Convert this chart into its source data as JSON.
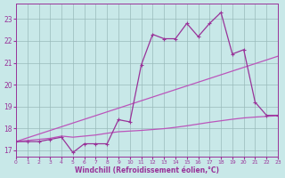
{
  "xlabel": "Windchill (Refroidissement éolien,°C)",
  "bg_color": "#c8e8e8",
  "grid_color": "#99bbbb",
  "line_color": "#993399",
  "line_light_color": "#bb55bb",
  "ylim": [
    16.7,
    23.7
  ],
  "xlim": [
    0,
    23
  ],
  "yticks": [
    17,
    18,
    19,
    20,
    21,
    22,
    23
  ],
  "xticks": [
    0,
    1,
    2,
    3,
    4,
    5,
    6,
    7,
    8,
    9,
    10,
    11,
    12,
    13,
    14,
    15,
    16,
    17,
    18,
    19,
    20,
    21,
    22,
    23
  ],
  "curve1_y": [
    17.4,
    17.4,
    17.4,
    17.5,
    17.6,
    16.9,
    17.3,
    17.3,
    17.3,
    18.4,
    18.3,
    20.9,
    22.3,
    22.1,
    22.1,
    22.8,
    22.2,
    22.8,
    23.3,
    21.4,
    21.6,
    19.2,
    18.6,
    18.6
  ],
  "trend_y_start": 17.4,
  "trend_y_end": 21.3,
  "smooth_y": [
    17.4,
    17.45,
    17.5,
    17.55,
    17.65,
    17.6,
    17.65,
    17.7,
    17.78,
    17.85,
    17.88,
    17.91,
    17.95,
    17.99,
    18.05,
    18.12,
    18.2,
    18.28,
    18.35,
    18.42,
    18.48,
    18.52,
    18.55,
    18.58
  ]
}
